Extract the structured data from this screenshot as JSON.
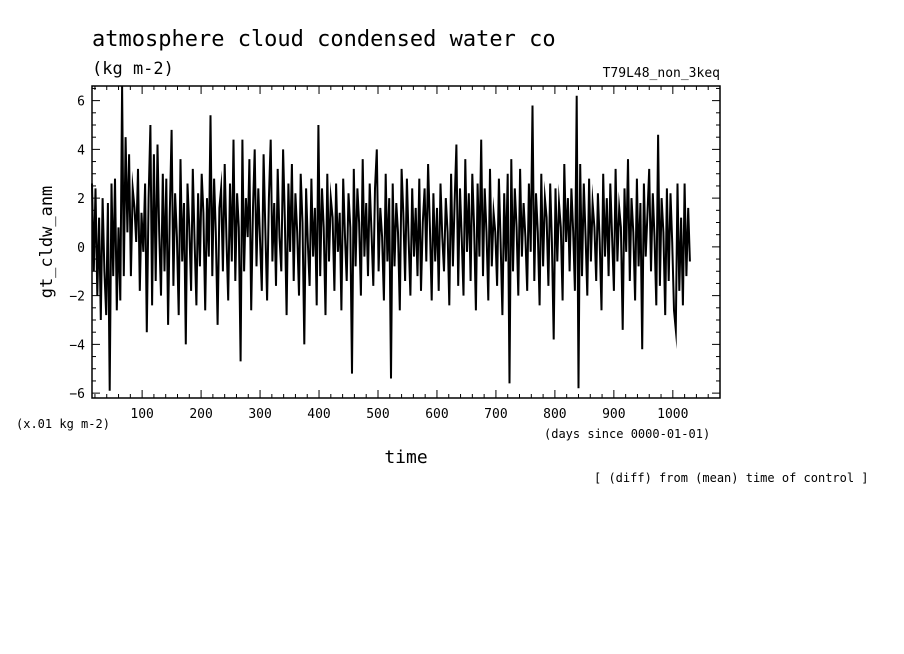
{
  "chart_data": {
    "type": "line",
    "title": "atmosphere cloud condensed water co",
    "units": "(kg m-2)",
    "run_label": "T79L48_non_3keq",
    "ylabel": "gt_cldw_anm",
    "y_scale_note": "(x.01 kg m-2)",
    "xlabel": "time",
    "x_units": "(days since 0000-01-01)",
    "note": "[ (diff) from (mean) time of control ]",
    "xlim": [
      15,
      1080
    ],
    "ylim": [
      -6.2,
      6.6
    ],
    "x_ticks": [
      100,
      200,
      300,
      400,
      500,
      600,
      700,
      800,
      900,
      1000
    ],
    "x_tick_labels": [
      "100",
      "200",
      "300",
      "400",
      "500",
      "600",
      "700",
      "800",
      "900",
      "1000"
    ],
    "y_ticks": [
      -6,
      -4,
      -2,
      0,
      2,
      4,
      6
    ],
    "y_tick_labels": [
      "−6",
      "−4",
      "−2",
      "0",
      "2",
      "4",
      "6"
    ],
    "series": [
      {
        "name": "gt_cldw_anm",
        "x_start": 15,
        "x_step": 3,
        "values": [
          2.6,
          -1.0,
          2.4,
          -2.0,
          1.2,
          -3.0,
          2.0,
          -1.0,
          -2.8,
          1.8,
          -5.9,
          2.6,
          -1.2,
          2.8,
          -2.6,
          0.8,
          -2.2,
          6.6,
          -1.2,
          4.5,
          0.6,
          3.8,
          -1.2,
          2.4,
          1.6,
          0.2,
          3.2,
          -1.8,
          1.4,
          -0.2,
          2.6,
          -3.5,
          2.0,
          5.0,
          -2.4,
          3.8,
          -1.4,
          4.2,
          0.6,
          -2.0,
          3.0,
          -1.0,
          2.8,
          -3.2,
          1.4,
          4.8,
          -1.6,
          2.2,
          0.4,
          -2.8,
          3.6,
          -0.6,
          1.8,
          -4.0,
          2.6,
          0.8,
          -1.8,
          3.2,
          0.2,
          -2.4,
          2.2,
          -0.8,
          3.0,
          1.4,
          -2.6,
          2.0,
          -0.4,
          5.4,
          -1.2,
          2.8,
          0.6,
          -3.2,
          1.6,
          2.4,
          -1.0,
          3.4,
          0.4,
          -2.2,
          2.6,
          -0.6,
          4.4,
          -1.4,
          2.2,
          0.8,
          -4.7,
          4.4,
          -1.0,
          2.0,
          0.4,
          3.6,
          -2.6,
          1.6,
          4.0,
          -0.8,
          2.4,
          0.2,
          -1.8,
          3.8,
          0.6,
          -2.2,
          2.0,
          4.4,
          -0.6,
          1.8,
          -1.6,
          3.2,
          0.4,
          -1.0,
          4.0,
          1.2,
          -2.8,
          2.6,
          -0.2,
          3.4,
          -1.4,
          2.2,
          0.6,
          -2.0,
          3.0,
          1.0,
          -4.0,
          2.4,
          0.2,
          -1.6,
          2.8,
          -0.4,
          1.6,
          -2.4,
          5.0,
          -1.2,
          2.4,
          0.8,
          -2.8,
          3.0,
          -0.6,
          2.0,
          1.2,
          -1.8,
          2.6,
          -0.2,
          1.4,
          -2.6,
          2.8,
          0.4,
          -1.4,
          2.2,
          0.8,
          -5.2,
          3.2,
          -0.8,
          2.4,
          1.0,
          -2.0,
          3.6,
          -0.4,
          1.8,
          -1.2,
          2.6,
          0.6,
          -1.6,
          2.4,
          4.0,
          -1.0,
          1.6,
          0.4,
          -2.2,
          3.0,
          -0.6,
          2.0,
          -5.4,
          2.6,
          -0.8,
          1.8,
          0.6,
          -2.6,
          3.2,
          1.4,
          -1.4,
          2.8,
          0.2,
          -2.0,
          2.4,
          -0.4,
          1.6,
          -1.2,
          2.8,
          -1.8,
          1.0,
          2.4,
          -0.6,
          3.4,
          0.8,
          -2.2,
          2.2,
          -0.6,
          1.6,
          -1.8,
          2.6,
          0.4,
          -1.0,
          2.0,
          0.6,
          -2.4,
          3.0,
          -0.8,
          1.8,
          4.2,
          -1.6,
          2.4,
          0.4,
          -2.0,
          3.6,
          -0.2,
          2.2,
          -1.4,
          3.0,
          0.8,
          -2.6,
          2.6,
          -0.4,
          4.4,
          -1.2,
          2.4,
          0.6,
          -2.2,
          3.2,
          -0.8,
          1.4,
          0.6,
          -1.6,
          2.8,
          0.2,
          -2.8,
          2.2,
          -0.6,
          3.0,
          -5.6,
          3.6,
          -1.0,
          2.4,
          0.8,
          -2.0,
          3.2,
          -0.4,
          1.8,
          0.4,
          -1.8,
          2.6,
          -0.2,
          5.8,
          -1.4,
          2.2,
          0.6,
          -2.4,
          3.0,
          -0.8,
          2.0,
          1.2,
          -1.6,
          2.6,
          0.2,
          -3.8,
          2.4,
          -0.6,
          1.8,
          0.8,
          -2.2,
          3.4,
          0.2,
          2.0,
          -1.0,
          2.4,
          0.6,
          -1.8,
          6.2,
          -5.8,
          3.4,
          -1.2,
          2.6,
          0.4,
          -2.0,
          2.8,
          -0.6,
          1.8,
          0.8,
          -1.4,
          2.2,
          0.2,
          -2.6,
          3.0,
          -0.4,
          2.0,
          -1.2,
          2.6,
          0.4,
          -1.8,
          3.2,
          -0.6,
          1.6,
          0.8,
          -3.4,
          2.4,
          -0.2,
          3.6,
          -1.4,
          2.0,
          0.6,
          -2.2,
          2.8,
          -0.8,
          1.8,
          -4.2,
          2.6,
          -0.4,
          1.4,
          3.2,
          -1.0,
          2.2,
          0.4,
          -2.4,
          4.6,
          -1.6,
          2.0,
          0.6,
          -2.8,
          2.4,
          -1.4,
          2.2,
          0.2,
          -2.6,
          -3.4,
          2.6,
          -1.8,
          1.2,
          -2.4,
          2.6,
          -1.2,
          1.6,
          -0.6
        ]
      }
    ]
  }
}
